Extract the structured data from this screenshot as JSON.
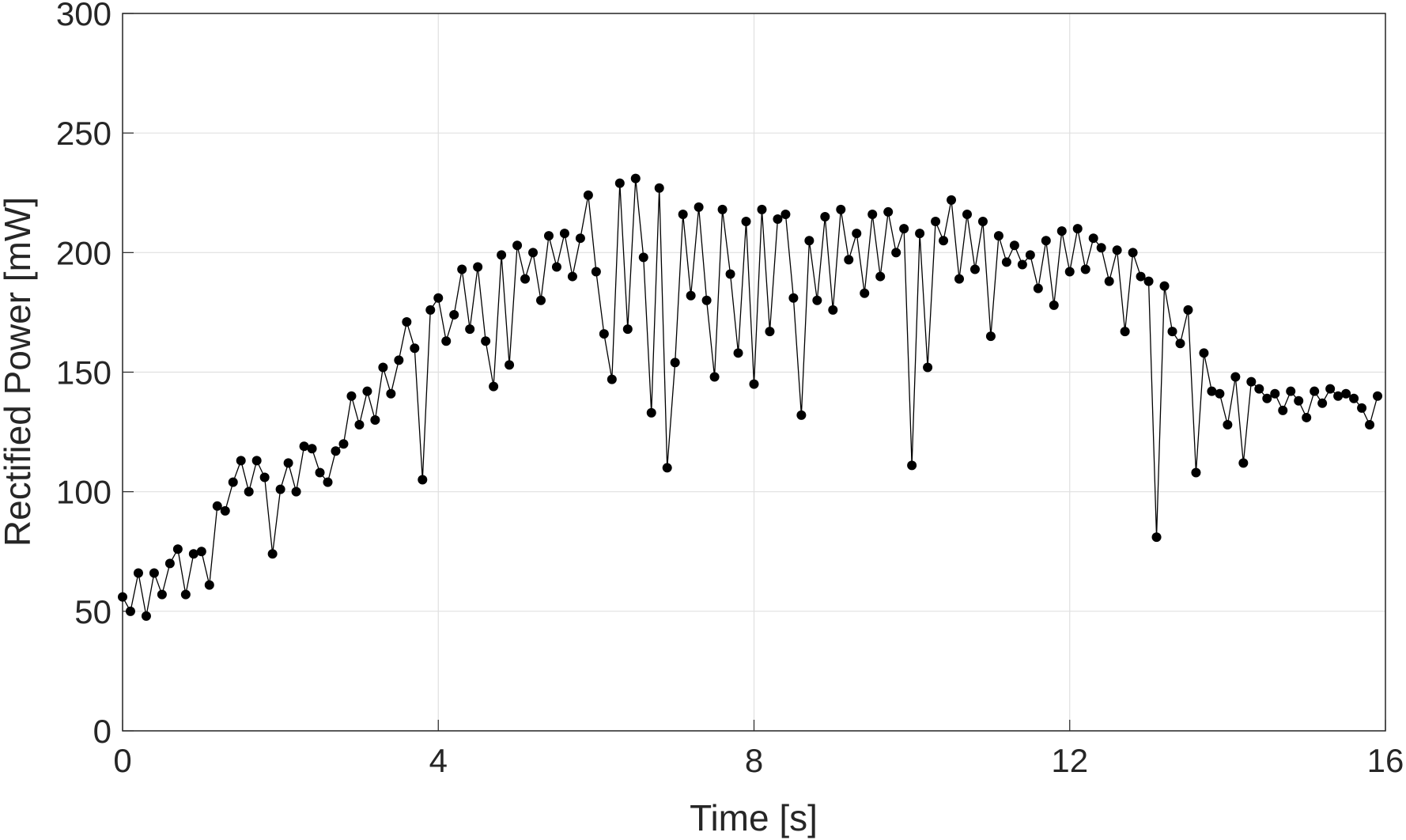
{
  "chart_data": {
    "type": "line",
    "xlabel": "Time [s]",
    "ylabel": "Rectified Power [mW]",
    "x": [
      0.0,
      0.1,
      0.2,
      0.3,
      0.4,
      0.5,
      0.6,
      0.7,
      0.8,
      0.9,
      1.0,
      1.1,
      1.2,
      1.3,
      1.4,
      1.5,
      1.6,
      1.7,
      1.8,
      1.9,
      2.0,
      2.1,
      2.2,
      2.3,
      2.4,
      2.5,
      2.6,
      2.7,
      2.8,
      2.9,
      3.0,
      3.1,
      3.2,
      3.3,
      3.4,
      3.5,
      3.6,
      3.7,
      3.8,
      3.9,
      4.0,
      4.1,
      4.2,
      4.3,
      4.4,
      4.5,
      4.6,
      4.7,
      4.8,
      4.9,
      5.0,
      5.1,
      5.2,
      5.3,
      5.4,
      5.5,
      5.6,
      5.7,
      5.8,
      5.9,
      6.0,
      6.1,
      6.2,
      6.3,
      6.4,
      6.5,
      6.6,
      6.7,
      6.8,
      6.9,
      7.0,
      7.1,
      7.2,
      7.3,
      7.4,
      7.5,
      7.6,
      7.7,
      7.8,
      7.9,
      8.0,
      8.1,
      8.2,
      8.3,
      8.4,
      8.5,
      8.6,
      8.7,
      8.8,
      8.9,
      9.0,
      9.1,
      9.2,
      9.3,
      9.4,
      9.5,
      9.6,
      9.7,
      9.8,
      9.9,
      10.0,
      10.1,
      10.2,
      10.3,
      10.4,
      10.5,
      10.6,
      10.7,
      10.8,
      10.9,
      11.0,
      11.1,
      11.2,
      11.3,
      11.4,
      11.5,
      11.6,
      11.7,
      11.8,
      11.9,
      12.0,
      12.1,
      12.2,
      12.3,
      12.4,
      12.5,
      12.6,
      12.7,
      12.8,
      12.9,
      13.0,
      13.1,
      13.2,
      13.3,
      13.4,
      13.5,
      13.6,
      13.7,
      13.8,
      13.9,
      14.0,
      14.1,
      14.2,
      14.3,
      14.4,
      14.5,
      14.6,
      14.7,
      14.8,
      14.9,
      15.0,
      15.1,
      15.2,
      15.3,
      15.4,
      15.5,
      15.6,
      15.7,
      15.8,
      15.9
    ],
    "series": [
      {
        "color": "#000000",
        "values": [
          56,
          50,
          66,
          48,
          66,
          57,
          70,
          76,
          57,
          74,
          75,
          61,
          94,
          92,
          104,
          113,
          100,
          113,
          106,
          74,
          101,
          112,
          100,
          119,
          118,
          108,
          104,
          117,
          120,
          140,
          128,
          142,
          130,
          152,
          141,
          155,
          171,
          160,
          105,
          176,
          181,
          163,
          174,
          193,
          168,
          194,
          163,
          144,
          199,
          153,
          203,
          189,
          200,
          180,
          207,
          194,
          208,
          190,
          206,
          224,
          192,
          166,
          147,
          229,
          168,
          231,
          198,
          133,
          227,
          110,
          154,
          216,
          182,
          219,
          180,
          148,
          218,
          191,
          158,
          213,
          145,
          218,
          167,
          214,
          216,
          181,
          132,
          205,
          180,
          215,
          176,
          218,
          197,
          208,
          183,
          216,
          190,
          217,
          200,
          210,
          111,
          208,
          152,
          213,
          205,
          222,
          189,
          216,
          193,
          213,
          165,
          207,
          196,
          203,
          195,
          199,
          185,
          205,
          178,
          209,
          192,
          210,
          193,
          206,
          202,
          188,
          201,
          167,
          200,
          190,
          188,
          81,
          186,
          167,
          162,
          176,
          108,
          158,
          142,
          141,
          128,
          148,
          112,
          146,
          143,
          139,
          141,
          134,
          142,
          138,
          131,
          142,
          137,
          143,
          140,
          141,
          139,
          135,
          128,
          140
        ]
      }
    ],
    "xlim": [
      0,
      16
    ],
    "xticks": [
      0,
      4,
      8,
      12,
      16
    ],
    "ylim": [
      0,
      300
    ],
    "yticks": [
      0,
      50,
      100,
      150,
      200,
      250,
      300
    ],
    "grid": true
  }
}
